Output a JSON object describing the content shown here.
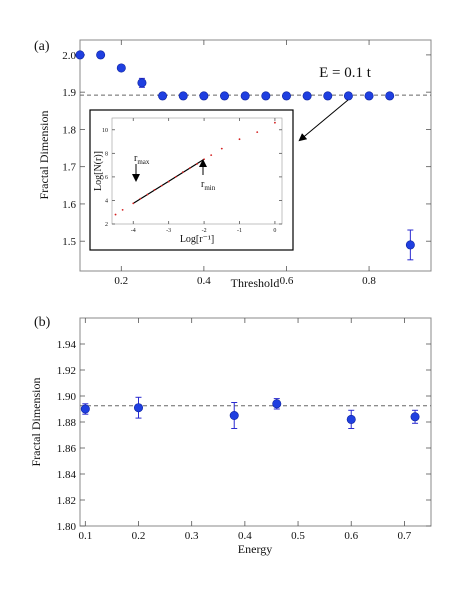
{
  "colors": {
    "point": "#1f3fe0",
    "pointEdge": "#0a1f9c",
    "errorbar": "#2a2ad0",
    "dashed": "#666666",
    "inset_points": "#d42020",
    "inset_fit": "#000000",
    "frame": "#888888"
  },
  "chart_data": [
    {
      "type": "scatter",
      "panel_label": "(a)",
      "title": "",
      "xlabel": "Threshold",
      "ylabel": "Fractal Dimension",
      "xlim": [
        0.1,
        0.95
      ],
      "ylim": [
        1.42,
        2.04
      ],
      "xticks": [
        0.2,
        0.4,
        0.6,
        0.8
      ],
      "xtick_labels": [
        "0.2",
        "0.4",
        "0.6",
        "0.8"
      ],
      "yticks": [
        1.5,
        1.6,
        1.7,
        1.8,
        1.9,
        2.0
      ],
      "ytick_labels": [
        "1.5",
        "1.6",
        "1.7",
        "1.8",
        "1.9",
        "2.0"
      ],
      "grid": false,
      "reference_line": 1.892,
      "annotation": "E = 0.1 t",
      "points": [
        {
          "x": 0.1,
          "y": 2.0,
          "err": 0.003
        },
        {
          "x": 0.15,
          "y": 2.0,
          "err": 0.003
        },
        {
          "x": 0.2,
          "y": 1.965,
          "err": 0.007
        },
        {
          "x": 0.25,
          "y": 1.925,
          "err": 0.012
        },
        {
          "x": 0.3,
          "y": 1.89,
          "err": 0.003
        },
        {
          "x": 0.35,
          "y": 1.89,
          "err": 0.003
        },
        {
          "x": 0.4,
          "y": 1.89,
          "err": 0.003
        },
        {
          "x": 0.45,
          "y": 1.89,
          "err": 0.003
        },
        {
          "x": 0.5,
          "y": 1.89,
          "err": 0.003
        },
        {
          "x": 0.55,
          "y": 1.89,
          "err": 0.003
        },
        {
          "x": 0.6,
          "y": 1.89,
          "err": 0.003
        },
        {
          "x": 0.65,
          "y": 1.89,
          "err": 0.003
        },
        {
          "x": 0.7,
          "y": 1.89,
          "err": 0.003
        },
        {
          "x": 0.75,
          "y": 1.89,
          "err": 0.003
        },
        {
          "x": 0.8,
          "y": 1.89,
          "err": 0.003
        },
        {
          "x": 0.85,
          "y": 1.89,
          "err": 0.003
        },
        {
          "x": 0.9,
          "y": 1.49,
          "err": 0.04
        }
      ],
      "inset": {
        "type": "scatter",
        "xlabel": "Log[r⁻¹]",
        "ylabel": "Log[N(r)]",
        "xlim": [
          -4.6,
          0.2
        ],
        "ylim": [
          2,
          11
        ],
        "xticks": [
          -4,
          -3,
          -2,
          -1,
          0
        ],
        "xtick_labels": [
          "-4",
          "-3",
          "-2",
          "-1",
          "0"
        ],
        "yticks": [
          2,
          4,
          6,
          8,
          10
        ],
        "ytick_labels": [
          "2",
          "4",
          "6",
          "8",
          "10"
        ],
        "annotations": {
          "rmax": "r",
          "rmax_sub": "max",
          "rmin": "r",
          "rmin_sub": "min"
        },
        "rmax_x": -4.0,
        "rmin_x": -2.0,
        "fit_line": [
          [
            -4.0,
            3.75
          ],
          [
            -2.0,
            7.5
          ]
        ],
        "points": [
          [
            -4.5,
            2.8
          ],
          [
            -4.3,
            3.2
          ],
          [
            -4.0,
            3.75
          ],
          [
            -3.8,
            4.15
          ],
          [
            -3.6,
            4.5
          ],
          [
            -3.4,
            4.9
          ],
          [
            -3.2,
            5.25
          ],
          [
            -3.0,
            5.6
          ],
          [
            -2.8,
            6.0
          ],
          [
            -2.6,
            6.4
          ],
          [
            -2.4,
            6.75
          ],
          [
            -2.2,
            7.1
          ],
          [
            -2.0,
            7.5
          ],
          [
            -1.8,
            7.85
          ],
          [
            -1.5,
            8.4
          ],
          [
            -1.0,
            9.2
          ],
          [
            -0.5,
            9.8
          ],
          [
            0.0,
            10.6
          ]
        ]
      }
    },
    {
      "type": "scatter",
      "panel_label": "(b)",
      "title": "",
      "xlabel": "Energy",
      "ylabel": "Fractal Dimension",
      "xlim": [
        0.09,
        0.75
      ],
      "ylim": [
        1.8,
        1.96
      ],
      "xticks": [
        0.1,
        0.2,
        0.3,
        0.4,
        0.5,
        0.6,
        0.7
      ],
      "xtick_labels": [
        "0.1",
        "0.2",
        "0.3",
        "0.4",
        "0.5",
        "0.6",
        "0.7"
      ],
      "yticks": [
        1.8,
        1.82,
        1.84,
        1.86,
        1.88,
        1.9,
        1.92,
        1.94
      ],
      "ytick_labels": [
        "1.80",
        "1.82",
        "1.84",
        "1.86",
        "1.88",
        "1.90",
        "1.92",
        "1.94"
      ],
      "grid": false,
      "reference_line": 1.8925,
      "points": [
        {
          "x": 0.1,
          "y": 1.89,
          "err": 0.004
        },
        {
          "x": 0.2,
          "y": 1.891,
          "err": 0.008
        },
        {
          "x": 0.38,
          "y": 1.885,
          "err": 0.01
        },
        {
          "x": 0.46,
          "y": 1.894,
          "err": 0.004
        },
        {
          "x": 0.6,
          "y": 1.882,
          "err": 0.007
        },
        {
          "x": 0.72,
          "y": 1.884,
          "err": 0.005
        }
      ]
    }
  ]
}
